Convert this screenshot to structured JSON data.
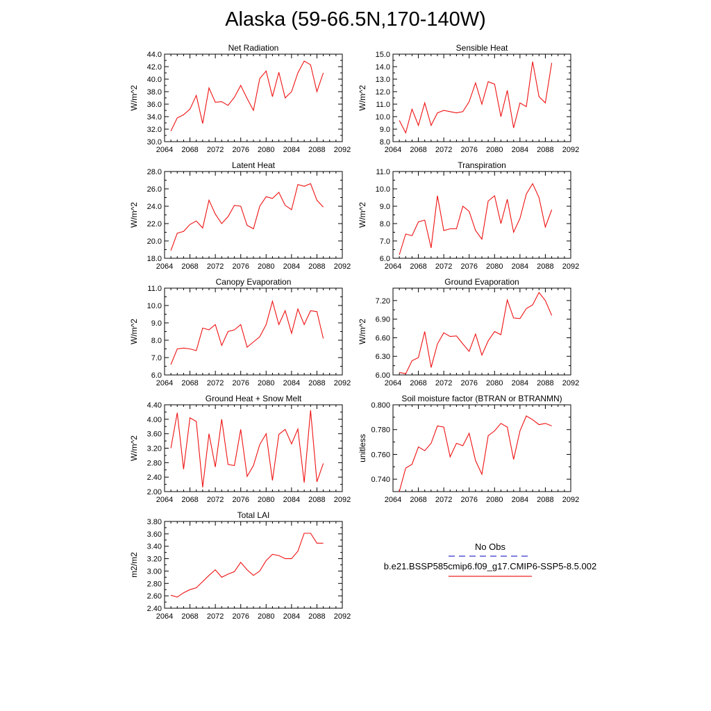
{
  "title": "Alaska (59-66.5N,170-140W)",
  "legend": {
    "obs_label": "No Obs",
    "obs_color": "#3333cc",
    "case_label": "b.e21.BSSP585cmip6.f09_g17.CMIP6-SSP5-8.5.002",
    "case_color": "#ee2222"
  },
  "series_color": "#ee1111",
  "chart_data": [
    {
      "type": "line",
      "title": "Net Radiation",
      "ylabel": "W/m^2",
      "xlim": [
        2064,
        2092
      ],
      "ylim": [
        30,
        44
      ],
      "xticks": [
        "2064",
        "2068",
        "2072",
        "2076",
        "2080",
        "2084",
        "2088",
        "2092"
      ],
      "yticks": [
        "30.0",
        "32.0",
        "34.0",
        "36.0",
        "38.0",
        "40.0",
        "42.0",
        "44.0"
      ],
      "x": [
        2065,
        2066,
        2067,
        2068,
        2069,
        2070,
        2071,
        2072,
        2073,
        2074,
        2075,
        2076,
        2077,
        2078,
        2079,
        2080,
        2081,
        2082,
        2083,
        2084,
        2085,
        2086,
        2087,
        2088,
        2089
      ],
      "values": [
        31.7,
        33.8,
        34.3,
        35.2,
        37.4,
        32.9,
        38.6,
        36.3,
        36.4,
        35.8,
        37.1,
        39.0,
        36.9,
        35.0,
        40.1,
        41.3,
        37.2,
        41.1,
        37.0,
        38.0,
        41.0,
        42.9,
        42.3,
        38.0,
        41.0
      ]
    },
    {
      "type": "line",
      "title": "Sensible Heat",
      "ylabel": "W/m^2",
      "xlim": [
        2064,
        2092
      ],
      "ylim": [
        8,
        15
      ],
      "xticks": [
        "2064",
        "2068",
        "2072",
        "2076",
        "2080",
        "2084",
        "2088",
        "2092"
      ],
      "yticks": [
        "8.0",
        "9.0",
        "10.0",
        "11.0",
        "12.0",
        "13.0",
        "14.0",
        "15.0"
      ],
      "x": [
        2065,
        2066,
        2067,
        2068,
        2069,
        2070,
        2071,
        2072,
        2073,
        2074,
        2075,
        2076,
        2077,
        2078,
        2079,
        2080,
        2081,
        2082,
        2083,
        2084,
        2085,
        2086,
        2087,
        2088,
        2089
      ],
      "values": [
        9.7,
        8.7,
        10.6,
        9.3,
        11.1,
        9.3,
        10.3,
        10.5,
        10.4,
        10.3,
        10.4,
        11.2,
        12.7,
        11.0,
        12.8,
        12.6,
        10.0,
        12.1,
        9.1,
        11.1,
        10.8,
        14.4,
        11.6,
        11.1,
        14.3
      ]
    },
    {
      "type": "line",
      "title": "Latent Heat",
      "ylabel": "W/m^2",
      "xlim": [
        2064,
        2092
      ],
      "ylim": [
        18,
        28
      ],
      "xticks": [
        "2064",
        "2068",
        "2072",
        "2076",
        "2080",
        "2084",
        "2088",
        "2092"
      ],
      "yticks": [
        "18.0",
        "20.0",
        "22.0",
        "24.0",
        "26.0",
        "28.0"
      ],
      "x": [
        2065,
        2066,
        2067,
        2068,
        2069,
        2070,
        2071,
        2072,
        2073,
        2074,
        2075,
        2076,
        2077,
        2078,
        2079,
        2080,
        2081,
        2082,
        2083,
        2084,
        2085,
        2086,
        2087,
        2088,
        2089
      ],
      "values": [
        18.9,
        20.9,
        21.1,
        21.9,
        22.3,
        21.5,
        24.7,
        23.1,
        22.0,
        22.8,
        24.1,
        24.0,
        21.8,
        21.4,
        24.0,
        25.1,
        24.9,
        25.6,
        24.1,
        23.6,
        26.5,
        26.3,
        26.6,
        24.7,
        23.9
      ]
    },
    {
      "type": "line",
      "title": "Transpiration",
      "ylabel": "W/m^2",
      "xlim": [
        2064,
        2092
      ],
      "ylim": [
        6,
        11
      ],
      "xticks": [
        "2064",
        "2068",
        "2072",
        "2076",
        "2080",
        "2084",
        "2088",
        "2092"
      ],
      "yticks": [
        "6.0",
        "7.0",
        "8.0",
        "9.0",
        "10.0",
        "11.0"
      ],
      "x": [
        2065,
        2066,
        2067,
        2068,
        2069,
        2070,
        2071,
        2072,
        2073,
        2074,
        2075,
        2076,
        2077,
        2078,
        2079,
        2080,
        2081,
        2082,
        2083,
        2084,
        2085,
        2086,
        2087,
        2088,
        2089
      ],
      "values": [
        6.2,
        7.4,
        7.3,
        8.1,
        8.2,
        6.6,
        9.6,
        7.6,
        7.7,
        7.7,
        9.0,
        8.7,
        7.6,
        7.1,
        9.3,
        9.6,
        8.0,
        9.4,
        7.5,
        8.3,
        9.7,
        10.3,
        9.5,
        7.8,
        8.8
      ]
    },
    {
      "type": "line",
      "title": "Canopy Evaporation",
      "ylabel": "W/m^2",
      "xlim": [
        2064,
        2092
      ],
      "ylim": [
        6,
        11
      ],
      "xticks": [
        "2064",
        "2068",
        "2072",
        "2076",
        "2080",
        "2084",
        "2088",
        "2092"
      ],
      "yticks": [
        "6.0",
        "7.0",
        "8.0",
        "9.0",
        "10.0",
        "11.0"
      ],
      "x": [
        2065,
        2066,
        2067,
        2068,
        2069,
        2070,
        2071,
        2072,
        2073,
        2074,
        2075,
        2076,
        2077,
        2078,
        2079,
        2080,
        2081,
        2082,
        2083,
        2084,
        2085,
        2086,
        2087,
        2088,
        2089
      ],
      "values": [
        6.6,
        7.5,
        7.55,
        7.5,
        7.4,
        8.7,
        8.6,
        8.9,
        7.7,
        8.5,
        8.6,
        8.9,
        7.6,
        7.9,
        8.2,
        8.9,
        10.25,
        8.9,
        9.7,
        8.4,
        9.8,
        8.9,
        9.7,
        9.65,
        8.1
      ]
    },
    {
      "type": "line",
      "title": "Ground Evaporation",
      "ylabel": "W/m^2",
      "xlim": [
        2064,
        2092
      ],
      "ylim": [
        6.0,
        7.4
      ],
      "xticks": [
        "2064",
        "2068",
        "2072",
        "2076",
        "2080",
        "2084",
        "2088",
        "2092"
      ],
      "yticks": [
        "6.00",
        "6.30",
        "6.60",
        "6.90",
        "7.20"
      ],
      "ytick_values": [
        6.0,
        6.3,
        6.6,
        6.9,
        7.2
      ],
      "x": [
        2065,
        2066,
        2067,
        2068,
        2069,
        2070,
        2071,
        2072,
        2073,
        2074,
        2075,
        2076,
        2077,
        2078,
        2079,
        2080,
        2081,
        2082,
        2083,
        2084,
        2085,
        2086,
        2087,
        2088,
        2089
      ],
      "values": [
        6.04,
        6.02,
        6.23,
        6.28,
        6.7,
        6.12,
        6.5,
        6.68,
        6.62,
        6.63,
        6.5,
        6.38,
        6.66,
        6.32,
        6.55,
        6.7,
        6.65,
        7.21,
        6.92,
        6.91,
        7.07,
        7.13,
        7.33,
        7.2,
        6.96
      ]
    },
    {
      "type": "line",
      "title": "Ground Heat + Snow Melt",
      "ylabel": "W/m^2",
      "xlim": [
        2064,
        2092
      ],
      "ylim": [
        2.0,
        4.4
      ],
      "xticks": [
        "2064",
        "2068",
        "2072",
        "2076",
        "2080",
        "2084",
        "2088",
        "2092"
      ],
      "yticks": [
        "2.00",
        "2.40",
        "2.80",
        "3.20",
        "3.60",
        "4.00",
        "4.40"
      ],
      "x": [
        2065,
        2066,
        2067,
        2068,
        2069,
        2070,
        2071,
        2072,
        2073,
        2074,
        2075,
        2076,
        2077,
        2078,
        2079,
        2080,
        2081,
        2082,
        2083,
        2084,
        2085,
        2086,
        2087,
        2088,
        2089
      ],
      "values": [
        3.2,
        4.18,
        2.62,
        4.04,
        3.94,
        2.12,
        3.6,
        2.68,
        4.0,
        2.75,
        2.72,
        3.72,
        2.42,
        2.72,
        3.3,
        3.6,
        2.31,
        3.58,
        3.72,
        3.32,
        3.73,
        2.25,
        4.25,
        2.27,
        2.78
      ]
    },
    {
      "type": "line",
      "title": "Soil moisture factor (BTRAN or BTRANMN)",
      "ylabel": "unitless",
      "xlim": [
        2064,
        2092
      ],
      "ylim": [
        0.73,
        0.8
      ],
      "xticks": [
        "2064",
        "2068",
        "2072",
        "2076",
        "2080",
        "2084",
        "2088",
        "2092"
      ],
      "yticks": [
        "0.740",
        "0.760",
        "0.780",
        "0.800"
      ],
      "ytick_values": [
        0.74,
        0.76,
        0.78,
        0.8
      ],
      "x": [
        2065,
        2066,
        2067,
        2068,
        2069,
        2070,
        2071,
        2072,
        2073,
        2074,
        2075,
        2076,
        2077,
        2078,
        2079,
        2080,
        2081,
        2082,
        2083,
        2084,
        2085,
        2086,
        2087,
        2088,
        2089
      ],
      "values": [
        0.73,
        0.749,
        0.752,
        0.766,
        0.763,
        0.769,
        0.783,
        0.782,
        0.758,
        0.769,
        0.767,
        0.777,
        0.755,
        0.744,
        0.775,
        0.779,
        0.785,
        0.782,
        0.756,
        0.779,
        0.791,
        0.788,
        0.784,
        0.785,
        0.783
      ]
    },
    {
      "type": "line",
      "title": "Total LAI",
      "ylabel": "m2/m2",
      "xlim": [
        2064,
        2092
      ],
      "ylim": [
        2.4,
        3.8
      ],
      "xticks": [
        "2064",
        "2068",
        "2072",
        "2076",
        "2080",
        "2084",
        "2088",
        "2092"
      ],
      "yticks": [
        "2.40",
        "2.60",
        "2.80",
        "3.00",
        "3.20",
        "3.40",
        "3.60",
        "3.80"
      ],
      "x": [
        2065,
        2066,
        2067,
        2068,
        2069,
        2070,
        2071,
        2072,
        2073,
        2074,
        2075,
        2076,
        2077,
        2078,
        2079,
        2080,
        2081,
        2082,
        2083,
        2084,
        2085,
        2086,
        2087,
        2088,
        2089
      ],
      "values": [
        2.61,
        2.58,
        2.65,
        2.7,
        2.73,
        2.83,
        2.93,
        3.02,
        2.9,
        2.95,
        2.99,
        3.14,
        3.02,
        2.93,
        3.0,
        3.17,
        3.27,
        3.25,
        3.2,
        3.2,
        3.32,
        3.61,
        3.61,
        3.45,
        3.45
      ]
    }
  ]
}
